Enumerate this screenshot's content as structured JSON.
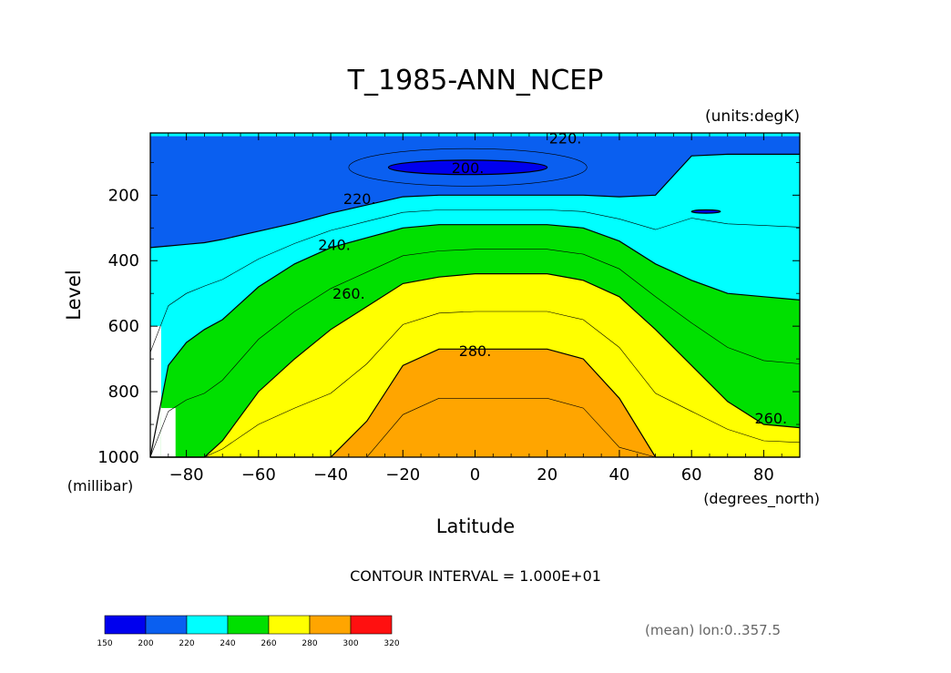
{
  "chart_data": {
    "type": "heatmap",
    "subtype": "filled-contour",
    "title": "T_1985-ANN_NCEP",
    "units": "(units:degK)",
    "xlabel": "Latitude",
    "ylabel": "Level",
    "x_units": "(degrees_north)",
    "y_units": "(millibar)",
    "xlim": [
      -90,
      90
    ],
    "ylim": [
      1000,
      10
    ],
    "y_inverted": true,
    "x_ticks": [
      "-80",
      "-60",
      "-40",
      "-20",
      "0",
      "20",
      "40",
      "60",
      "80"
    ],
    "x_tick_values": [
      -80,
      -60,
      -40,
      -20,
      0,
      20,
      40,
      60,
      80
    ],
    "y_ticks": [
      "200",
      "400",
      "600",
      "800",
      "1000"
    ],
    "y_tick_values": [
      200,
      400,
      600,
      800,
      1000
    ],
    "contour_interval_label": "CONTOUR INTERVAL = 1.000E+01",
    "contour_labels": [
      {
        "text": "220.",
        "lat": 25,
        "lev": 25
      },
      {
        "text": "200.",
        "lat": -2,
        "lev": 115
      },
      {
        "text": "220.",
        "lat": -32,
        "lev": 210
      },
      {
        "text": "240.",
        "lat": -39,
        "lev": 350
      },
      {
        "text": "260.",
        "lat": -35,
        "lev": 500
      },
      {
        "text": "280.",
        "lat": 0,
        "lev": 675
      },
      {
        "text": "260.",
        "lat": 82,
        "lev": 880
      }
    ],
    "level_bands": [
      {
        "min": 150,
        "max": 200,
        "color": "#0000ee"
      },
      {
        "min": 200,
        "max": 220,
        "color": "#0a5ff0"
      },
      {
        "min": 220,
        "max": 240,
        "color": "#00ffff"
      },
      {
        "min": 240,
        "max": 260,
        "color": "#00e000"
      },
      {
        "min": 260,
        "max": 280,
        "color": "#ffff00"
      },
      {
        "min": 280,
        "max": 300,
        "color": "#ffa500"
      },
      {
        "min": 300,
        "max": 320,
        "color": "#ff1010"
      }
    ],
    "colorbar_ticks": [
      "150",
      "200",
      "220",
      "240",
      "260",
      "280",
      "300",
      "320"
    ],
    "boundaries": {
      "lat": [
        -90,
        -85,
        -80,
        -75,
        -70,
        -60,
        -50,
        -40,
        -30,
        -20,
        -10,
        0,
        10,
        20,
        30,
        40,
        50,
        60,
        70,
        80,
        90
      ],
      "t200_top": [
        150,
        150,
        150,
        150,
        150,
        150,
        150,
        150,
        150,
        90,
        80,
        80,
        80,
        85,
        110,
        180,
        210,
        210,
        200,
        200,
        200
      ],
      "t220_top": [
        360,
        355,
        350,
        345,
        335,
        310,
        285,
        255,
        230,
        205,
        200,
        200,
        200,
        200,
        200,
        205,
        200,
        80,
        75,
        75,
        75
      ],
      "t240_top": [
        1000,
        720,
        650,
        610,
        580,
        480,
        410,
        360,
        330,
        300,
        290,
        290,
        290,
        290,
        300,
        340,
        410,
        460,
        500,
        510,
        520
      ],
      "t260_top": [
        1000,
        1000,
        1000,
        1000,
        950,
        800,
        700,
        610,
        540,
        470,
        450,
        440,
        440,
        440,
        460,
        510,
        610,
        720,
        830,
        900,
        910
      ],
      "t280_top": [
        1000,
        1000,
        1000,
        1000,
        1000,
        1000,
        1000,
        1000,
        890,
        720,
        670,
        670,
        670,
        670,
        700,
        820,
        1000,
        1000,
        1000,
        1000,
        1000
      ]
    },
    "minima": [
      {
        "label": "200",
        "lat": -2,
        "lev": 115,
        "lat_halfwidth": 22,
        "lev_halfheight": 22
      },
      {
        "label": "small",
        "lat": 64,
        "lev": 250,
        "lat_halfwidth": 4,
        "lev_halfheight": 5
      }
    ],
    "masked_regions": [
      {
        "lat_min": -90,
        "lat_max": -87,
        "lev_min": 600,
        "lev_max": 1000
      },
      {
        "lat_min": -87,
        "lat_max": -83,
        "lev_min": 850,
        "lev_max": 1000
      }
    ]
  },
  "footer": {
    "region_note": "(mean) lon:0..357.5"
  }
}
